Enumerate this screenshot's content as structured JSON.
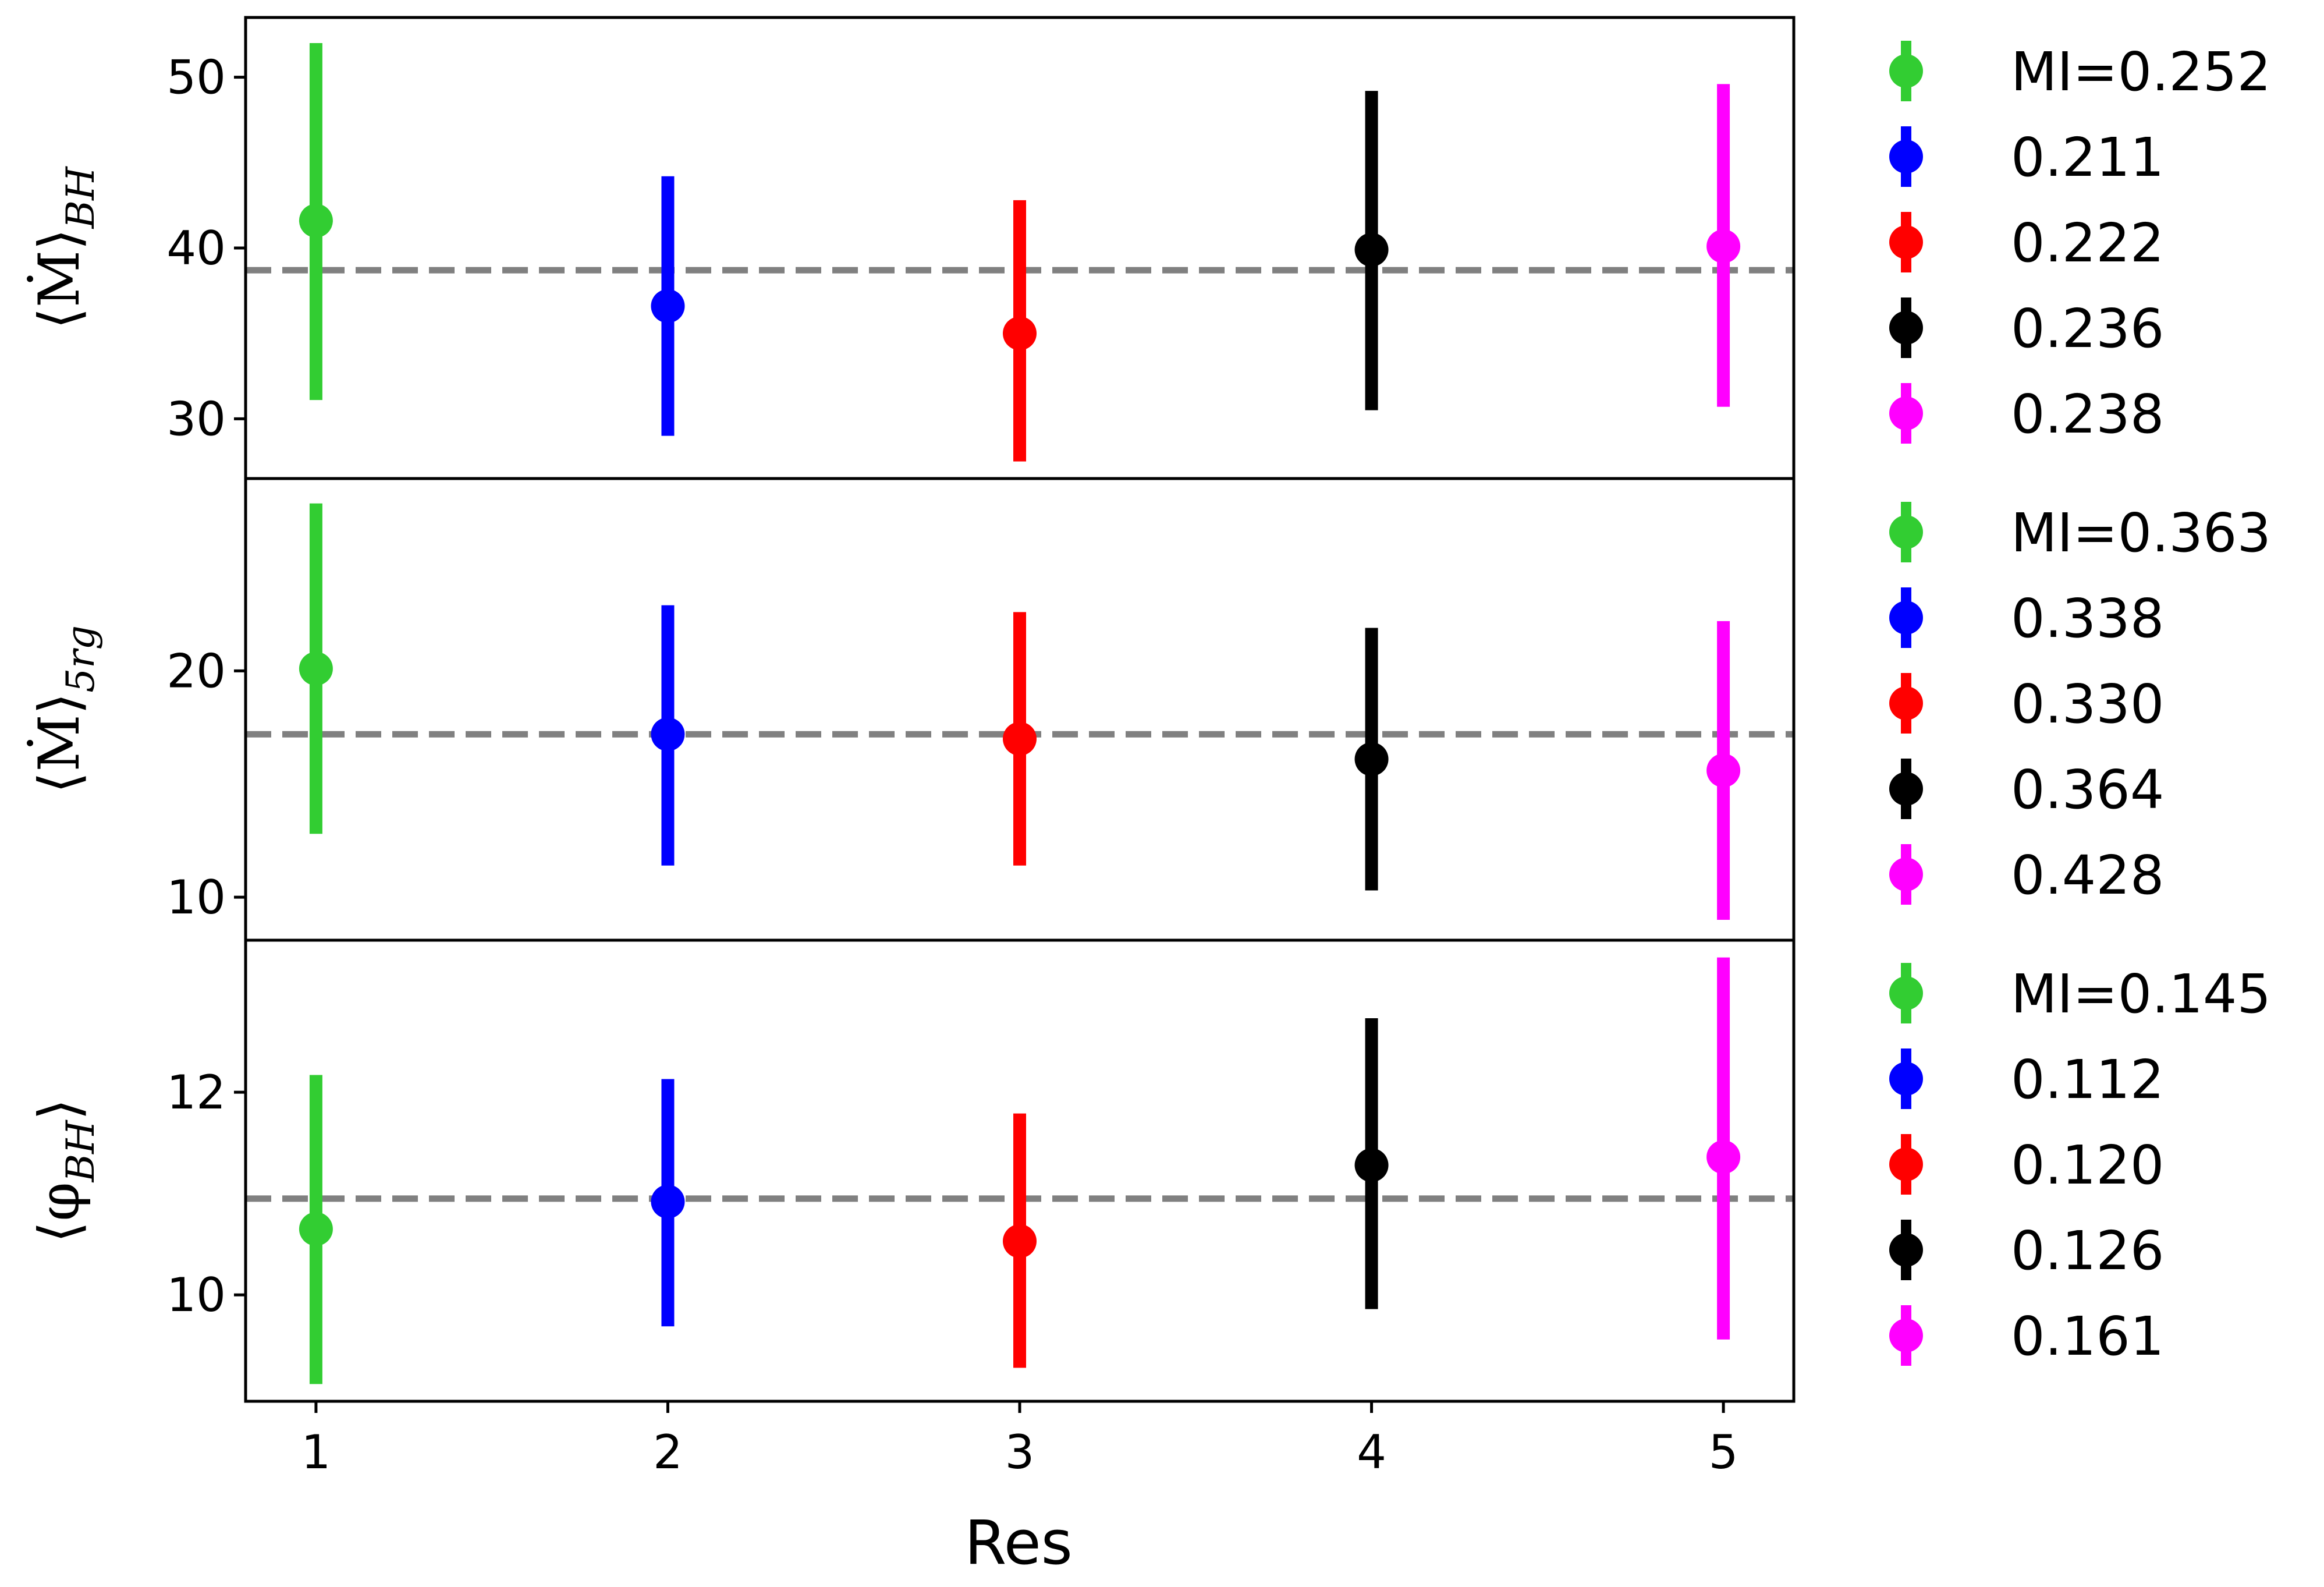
{
  "chart_data": {
    "type": "scatter",
    "xlabel": "Res",
    "x": [
      1,
      2,
      3,
      4,
      5
    ],
    "xticks": [
      "1",
      "2",
      "3",
      "4",
      "5"
    ],
    "xlim": [
      0.8,
      5.2
    ],
    "colors": [
      "#32cd32",
      "#0000ff",
      "#ff0000",
      "#000000",
      "#ff00ff"
    ],
    "panels": [
      {
        "ylabel": "⟨Ṁ⟩BH",
        "ylim": [
          26.5,
          53.5
        ],
        "yticks": [
          30,
          40,
          50
        ],
        "mean_line": 38.7,
        "values": [
          41.6,
          36.6,
          35.0,
          39.9,
          40.1
        ],
        "error_low": [
          31.1,
          29.0,
          27.5,
          30.5,
          30.7
        ],
        "error_high": [
          52.0,
          44.2,
          42.8,
          49.2,
          49.6
        ],
        "legend": [
          "MI=0.252",
          "0.211",
          "0.222",
          "0.236",
          "0.238"
        ]
      },
      {
        "ylabel": "⟨Ṁ⟩5rg",
        "ylim": [
          8.1,
          28.5
        ],
        "yticks": [
          10,
          20
        ],
        "mean_line": 17.2,
        "values": [
          20.1,
          17.2,
          17.0,
          16.1,
          15.6
        ],
        "error_low": [
          12.8,
          11.4,
          11.4,
          10.3,
          9.0
        ],
        "error_high": [
          27.4,
          22.9,
          22.6,
          21.9,
          22.2
        ],
        "legend": [
          "MI=0.363",
          "0.338",
          "0.330",
          "0.364",
          "0.428"
        ]
      },
      {
        "ylabel": "⟨φBH⟩",
        "ylim": [
          8.95,
          13.5
        ],
        "yticks": [
          10,
          12
        ],
        "mean_line": 10.95,
        "values": [
          10.65,
          10.92,
          10.53,
          11.28,
          11.36
        ],
        "error_low": [
          9.12,
          9.69,
          9.28,
          9.86,
          9.56
        ],
        "error_high": [
          12.17,
          12.13,
          11.79,
          12.73,
          13.33
        ],
        "legend": [
          "MI=0.145",
          "0.112",
          "0.120",
          "0.126",
          "0.161"
        ]
      }
    ]
  }
}
